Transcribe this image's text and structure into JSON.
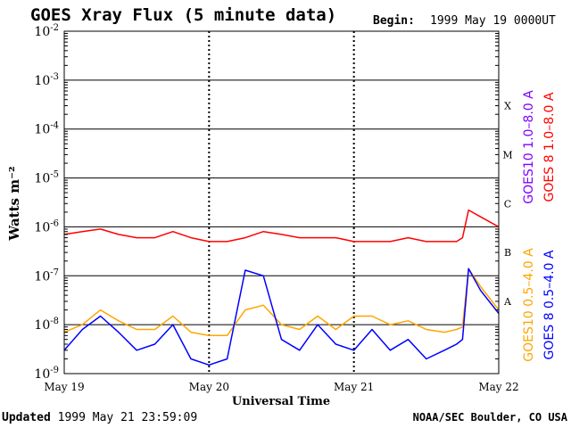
{
  "header": {
    "title": "GOES Xray Flux (5 minute data)",
    "begin_label": "Begin:",
    "begin_value": "1999 May 19 0000UT"
  },
  "footer": {
    "updated_label": "Updated",
    "updated_value": "1999 May 21 23:59:09",
    "credit": "NOAA/SEC Boulder, CO USA"
  },
  "colors": {
    "goes10_long": "#7f00ff",
    "goes8_long": "#ff0000",
    "goes10_short": "#ffa500",
    "goes8_short": "#0000ff"
  },
  "chart_data": {
    "type": "line",
    "title": "GOES Xray Flux (5 minute data)",
    "xlabel": "Universal Time",
    "ylabel": "Watts m⁻²",
    "y_scale": "log",
    "ylim": [
      1e-09,
      0.01
    ],
    "y_ticks": [
      {
        "value": 0.01,
        "base": "10",
        "exp": "-2"
      },
      {
        "value": 0.001,
        "base": "10",
        "exp": "-3"
      },
      {
        "value": 0.0001,
        "base": "10",
        "exp": "-4"
      },
      {
        "value": 1e-05,
        "base": "10",
        "exp": "-5"
      },
      {
        "value": 1e-06,
        "base": "10",
        "exp": "-6"
      },
      {
        "value": 1e-07,
        "base": "10",
        "exp": "-7"
      },
      {
        "value": 1e-08,
        "base": "10",
        "exp": "-8"
      },
      {
        "value": 1e-09,
        "base": "10",
        "exp": "-9"
      }
    ],
    "x_range": [
      "1999-05-19 00:00",
      "1999-05-22 00:00"
    ],
    "x_ticks": [
      "May 19",
      "May 20",
      "May 21",
      "May 22"
    ],
    "flare_classes": [
      {
        "label": "X",
        "value": 0.0003
      },
      {
        "label": "M",
        "value": 3e-05
      },
      {
        "label": "C",
        "value": 3e-06
      },
      {
        "label": "B",
        "value": 3e-07
      },
      {
        "label": "A",
        "value": 3e-08
      }
    ],
    "grid": true,
    "legend_position": "right",
    "series": [
      {
        "name": "GOES10 1.0–8.0 A",
        "color": "#7f00ff",
        "x": [],
        "values": []
      },
      {
        "name": "GOES 8 1.0–8.0 A",
        "color": "#ff0000",
        "x": [
          "1999-05-19 00:00",
          "1999-05-19 03:00",
          "1999-05-19 06:00",
          "1999-05-19 09:00",
          "1999-05-19 12:00",
          "1999-05-19 15:00",
          "1999-05-19 18:00",
          "1999-05-19 21:00",
          "1999-05-20 00:00",
          "1999-05-20 03:00",
          "1999-05-20 06:00",
          "1999-05-20 09:00",
          "1999-05-20 12:00",
          "1999-05-20 15:00",
          "1999-05-20 18:00",
          "1999-05-20 21:00",
          "1999-05-21 00:00",
          "1999-05-21 03:00",
          "1999-05-21 06:00",
          "1999-05-21 09:00",
          "1999-05-21 12:00",
          "1999-05-21 15:00",
          "1999-05-21 17:00",
          "1999-05-21 18:00",
          "1999-05-21 19:00",
          "1999-05-21 21:00",
          "1999-05-22 00:00"
        ],
        "values": [
          7e-07,
          8e-07,
          9e-07,
          7e-07,
          6e-07,
          6e-07,
          8e-07,
          6e-07,
          5e-07,
          5e-07,
          6e-07,
          8e-07,
          7e-07,
          6e-07,
          6e-07,
          6e-07,
          5e-07,
          5e-07,
          5e-07,
          6e-07,
          5e-07,
          5e-07,
          5e-07,
          6e-07,
          2.2e-06,
          1.6e-06,
          1e-06
        ]
      },
      {
        "name": "GOES10 0.5–4.0 A",
        "color": "#ffa500",
        "x": [
          "1999-05-19 00:00",
          "1999-05-19 03:00",
          "1999-05-19 06:00",
          "1999-05-19 09:00",
          "1999-05-19 12:00",
          "1999-05-19 15:00",
          "1999-05-19 18:00",
          "1999-05-19 21:00",
          "1999-05-20 00:00",
          "1999-05-20 03:00",
          "1999-05-20 06:00",
          "1999-05-20 09:00",
          "1999-05-20 12:00",
          "1999-05-20 15:00",
          "1999-05-20 18:00",
          "1999-05-20 21:00",
          "1999-05-21 00:00",
          "1999-05-21 03:00",
          "1999-05-21 06:00",
          "1999-05-21 09:00",
          "1999-05-21 12:00",
          "1999-05-21 15:00",
          "1999-05-21 17:00",
          "1999-05-21 18:00",
          "1999-05-21 19:00",
          "1999-05-21 21:00",
          "1999-05-22 00:00"
        ],
        "values": [
          7e-09,
          1e-08,
          2e-08,
          1.2e-08,
          8e-09,
          8e-09,
          1.5e-08,
          7e-09,
          6e-09,
          6e-09,
          2e-08,
          2.5e-08,
          1e-08,
          8e-09,
          1.5e-08,
          8e-09,
          1.5e-08,
          1.5e-08,
          1e-08,
          1.2e-08,
          8e-09,
          7e-09,
          8e-09,
          9e-09,
          1.4e-07,
          6e-08,
          2e-08
        ]
      },
      {
        "name": "GOES 8 0.5–4.0 A",
        "color": "#0000ff",
        "x": [
          "1999-05-19 00:00",
          "1999-05-19 03:00",
          "1999-05-19 06:00",
          "1999-05-19 09:00",
          "1999-05-19 12:00",
          "1999-05-19 15:00",
          "1999-05-19 18:00",
          "1999-05-19 21:00",
          "1999-05-20 00:00",
          "1999-05-20 03:00",
          "1999-05-20 06:00",
          "1999-05-20 09:00",
          "1999-05-20 12:00",
          "1999-05-20 15:00",
          "1999-05-20 18:00",
          "1999-05-20 21:00",
          "1999-05-21 00:00",
          "1999-05-21 03:00",
          "1999-05-21 06:00",
          "1999-05-21 09:00",
          "1999-05-21 12:00",
          "1999-05-21 15:00",
          "1999-05-21 17:00",
          "1999-05-21 18:00",
          "1999-05-21 19:00",
          "1999-05-21 21:00",
          "1999-05-22 00:00"
        ],
        "values": [
          3e-09,
          8e-09,
          1.5e-08,
          7e-09,
          3e-09,
          4e-09,
          1e-08,
          2e-09,
          1.5e-09,
          2e-09,
          1.3e-07,
          1e-07,
          5e-09,
          3e-09,
          1e-08,
          4e-09,
          3e-09,
          8e-09,
          3e-09,
          5e-09,
          2e-09,
          3e-09,
          4e-09,
          5e-09,
          1.4e-07,
          5e-08,
          1.7e-08
        ]
      }
    ]
  }
}
